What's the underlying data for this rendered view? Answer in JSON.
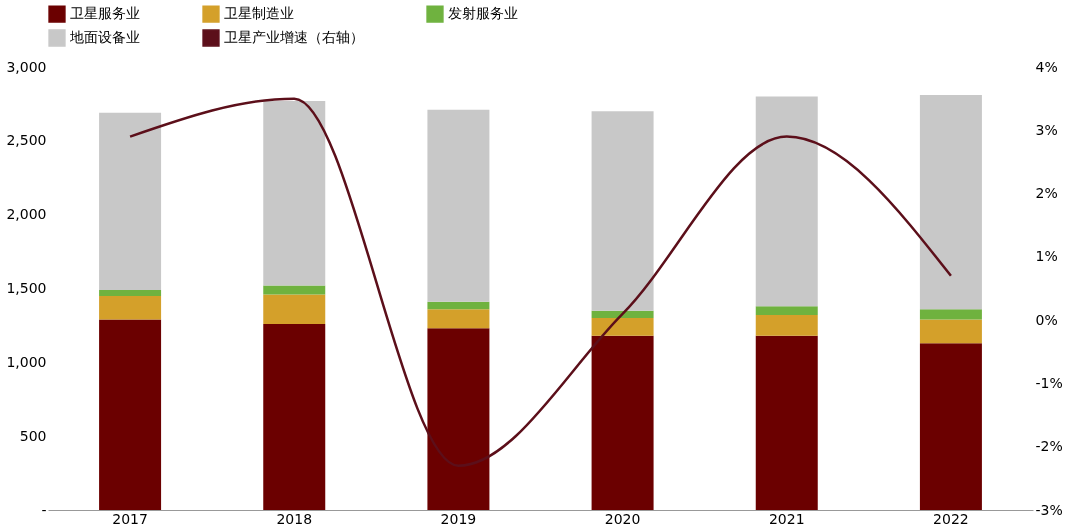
{
  "chart_data": {
    "type": "bar",
    "stacked": true,
    "categories": [
      "2017",
      "2018",
      "2019",
      "2020",
      "2021",
      "2022"
    ],
    "series": [
      {
        "name": "卫星服务业",
        "color": "#6b0000",
        "values": [
          1290,
          1260,
          1230,
          1180,
          1180,
          1130
        ]
      },
      {
        "name": "卫星制造业",
        "color": "#d4a02a",
        "values": [
          160,
          200,
          130,
          120,
          140,
          160
        ]
      },
      {
        "name": "发射服务业",
        "color": "#6fb23f",
        "values": [
          40,
          60,
          50,
          50,
          60,
          70
        ]
      },
      {
        "name": "地面设备业",
        "color": "#c8c8c8",
        "values": [
          1200,
          1250,
          1300,
          1350,
          1420,
          1450
        ]
      },
      {
        "name": "卫星产业增速（右轴）",
        "color": "#5c0f1a",
        "type": "line",
        "axis": "y2",
        "values": [
          2.9,
          3.5,
          -2.3,
          0.1,
          2.9,
          0.7
        ]
      }
    ],
    "ylim": [
      0,
      3000
    ],
    "yticks": [
      {
        "value": 0,
        "label": "-"
      },
      {
        "value": 500,
        "label": "500"
      },
      {
        "value": 1000,
        "label": "1,000"
      },
      {
        "value": 1500,
        "label": "1,500"
      },
      {
        "value": 2000,
        "label": "2,000"
      },
      {
        "value": 2500,
        "label": "2,500"
      },
      {
        "value": 3000,
        "label": "3,000"
      }
    ],
    "y2lim": [
      -3,
      4
    ],
    "y2ticks": [
      {
        "value": -3,
        "label": "-3%"
      },
      {
        "value": -2,
        "label": "-2%"
      },
      {
        "value": -1,
        "label": "-1%"
      },
      {
        "value": 0,
        "label": "0%"
      },
      {
        "value": 1,
        "label": "1%"
      },
      {
        "value": 2,
        "label": "2%"
      },
      {
        "value": 3,
        "label": "3%"
      },
      {
        "value": 4,
        "label": "4%"
      }
    ],
    "grid": false,
    "legend": "top"
  }
}
